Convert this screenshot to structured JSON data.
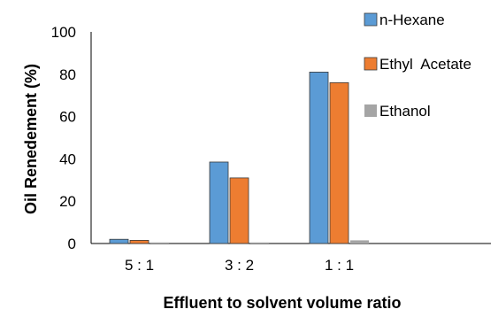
{
  "chart_data": {
    "type": "bar",
    "title": "",
    "xlabel": "Effluent to solvent volume ratio",
    "ylabel": "Oil Renedement (%)",
    "ylim": [
      0,
      100
    ],
    "yticks": [
      "0",
      "20",
      "40",
      "60",
      "80",
      "100"
    ],
    "categories": [
      "5 : 1",
      "3 : 2",
      "1 : 1"
    ],
    "empty_trailing_slots": 1,
    "grid": false,
    "legend_position": "right",
    "series": [
      {
        "name": "n-Hexane",
        "values": [
          2,
          38.5,
          81
        ],
        "color": "#5B9BD5"
      },
      {
        "name": "Ethyl  Acetate",
        "values": [
          1.5,
          31,
          76
        ],
        "color": "#ED7D31"
      },
      {
        "name": "Ethanol",
        "values": [
          0.5,
          0.5,
          1.5
        ],
        "color": "#A5A5A5"
      }
    ]
  }
}
